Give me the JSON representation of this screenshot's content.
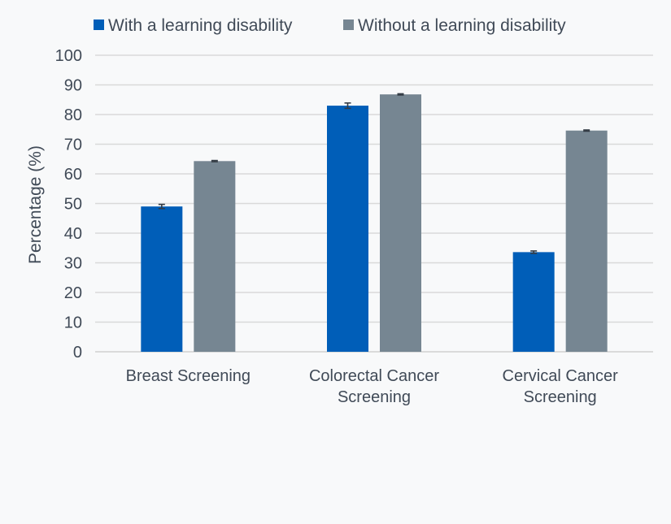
{
  "chart_data": {
    "type": "bar",
    "title": "",
    "xlabel": "",
    "ylabel": "Percentage (%)",
    "ylim": [
      0,
      100
    ],
    "yticks": [
      0,
      10,
      20,
      30,
      40,
      50,
      60,
      70,
      80,
      90,
      100
    ],
    "grid": true,
    "legend_position": "top",
    "categories": [
      [
        "Breast Screening"
      ],
      [
        "Colorectal Cancer",
        "Screening"
      ],
      [
        "Cervical Cancer",
        "Screening"
      ]
    ],
    "series": [
      {
        "name": "With a learning disability",
        "color": "#005eb8",
        "values": [
          49,
          83,
          33.6
        ],
        "error": [
          0.7,
          0.9,
          0.4
        ]
      },
      {
        "name": "Without a learning disability",
        "color": "#768692",
        "values": [
          64.3,
          86.8,
          74.6
        ],
        "error": [
          0.2,
          0.2,
          0.2
        ]
      }
    ]
  }
}
